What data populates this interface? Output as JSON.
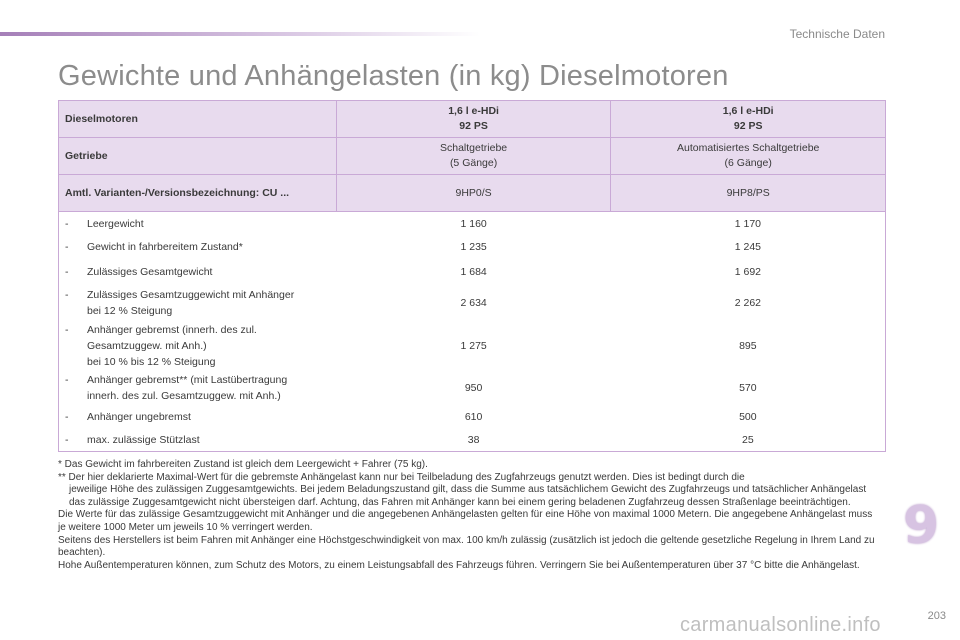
{
  "header": {
    "section": "Technische Daten"
  },
  "title": "Gewichte und Anhängelasten (in kg) Dieselmotoren",
  "table": {
    "rows_head": [
      {
        "label": "Dieselmotoren",
        "c1": [
          "1,6 l e-HDi",
          "92 PS"
        ],
        "c2": [
          "1,6 l e-HDi",
          "92 PS"
        ]
      },
      {
        "label": "Getriebe",
        "c1": [
          "Schaltgetriebe",
          "(5 Gänge)"
        ],
        "c2": [
          "Automatisiertes Schaltgetriebe",
          "(6 Gänge)"
        ]
      },
      {
        "label": "Amtl. Varianten-/Versionsbezeichnung: CU ...",
        "c1": [
          "9HP0/S"
        ],
        "c2": [
          "9HP8/PS"
        ]
      }
    ],
    "rows_body": [
      {
        "dash": "-",
        "lines": [
          "Leergewicht"
        ],
        "c1": "1 160",
        "c2": "1 170"
      },
      {
        "dash": "-",
        "lines": [
          "Gewicht in fahrbereitem Zustand*"
        ],
        "c1": "1 235",
        "c2": "1 245"
      },
      {
        "dash": "-",
        "lines": [
          "Zulässiges Gesamtgewicht"
        ],
        "c1": "1 684",
        "c2": "1 692"
      },
      {
        "dash": "-",
        "lines": [
          "Zulässiges Gesamtzuggewicht mit Anhänger",
          "bei 12 % Steigung"
        ],
        "c1": "2 634",
        "c2": "2 262"
      },
      {
        "dash": "-",
        "lines": [
          "Anhänger gebremst (innerh. des zul.",
          "Gesamtzuggew. mit Anh.)",
          "bei 10 % bis 12 % Steigung"
        ],
        "c1": "1 275",
        "c2": "895"
      },
      {
        "dash": "-",
        "lines": [
          "Anhänger gebremst** (mit Lastübertragung",
          "innerh. des zul. Gesamtzuggew. mit Anh.)"
        ],
        "c1": "950",
        "c2": "570"
      },
      {
        "dash": "-",
        "lines": [
          "Anhänger ungebremst"
        ],
        "c1": "610",
        "c2": "500"
      },
      {
        "dash": "-",
        "lines": [
          "max. zulässige Stützlast"
        ],
        "c1": "38",
        "c2": "25"
      }
    ]
  },
  "notes": {
    "fn1": "* Das Gewicht im fahrbereiten Zustand ist gleich dem Leergewicht + Fahrer (75 kg).",
    "fn2_a": "** Der hier deklarierte Maximal-Wert für die gebremste Anhängelast kann nur bei Teilbeladung des Zugfahrzeugs genutzt werden. Dies ist bedingt durch die",
    "fn2_b": "jeweilige Höhe des zulässigen Zuggesamtgewichts. Bei jedem Beladungszustand gilt, dass die Summe aus tatsächlichem Gewicht des Zugfahrzeugs und tatsächlicher Anhängelast das zulässige Zuggesamtgewicht nicht übersteigen darf. Achtung, das Fahren mit Anhänger kann bei einem gering beladenen Zugfahrzeug dessen Straßenlage beeinträchtigen.",
    "p1": "Die Werte für das zulässige Gesamtzuggewicht mit Anhänger und die angegebenen Anhängelasten gelten für eine Höhe von maximal 1000 Metern. Die angegebene Anhängelast muss je weitere 1000 Meter um jeweils 10 % verringert werden.",
    "p2": "Seitens des Herstellers ist beim Fahren mit Anhänger eine Höchstgeschwindigkeit von max. 100 km/h zulässig (zusätzlich ist jedoch die geltende gesetzliche Regelung in Ihrem Land zu beachten).",
    "p3": "Hohe Außentemperaturen können, zum Schutz des Motors, zu einem Leistungsabfall des Fahrzeugs führen. Verringern Sie bei Außentemperaturen über 37 °C bitte die Anhängelast."
  },
  "chapter_number": "9",
  "page_number": "203",
  "watermark": "carmanualsonline.info"
}
